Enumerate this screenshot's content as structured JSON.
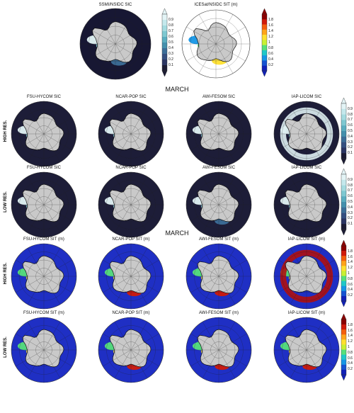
{
  "top_panels": [
    {
      "title": "SSMI/NSIDC SIC",
      "kind": "sic",
      "ocean": "#171733"
    },
    {
      "title": "ICESat/NSIDC SIT (m)",
      "kind": "sit_obs",
      "ocean": "#ffffff"
    }
  ],
  "sections": {
    "first": "MARCH",
    "second": "MARCH"
  },
  "row_labels": {
    "high": "HIGH RES.",
    "low": "LOW RES."
  },
  "rows": [
    {
      "kind": "sic",
      "label_key": "high",
      "titles": [
        "FSU-HYCOM SIC",
        "NCAR-POP SIC",
        "AWI-FESOM SIC",
        "IAP-LICOM SIC"
      ]
    },
    {
      "kind": "sic",
      "label_key": "low",
      "titles": [
        "FSU-HYCOM SIC",
        "NCAR-POP SIC",
        "AWI-FESOM SIC",
        "IAP-LICOM SIC"
      ]
    },
    {
      "kind": "sit",
      "label_key": "high",
      "titles": [
        "FSU-HYCOM SIT (m)",
        "NCAR-POP SIT (m)",
        "AWI-FESOM SIT (m)",
        "IAP-LICOM SIT (m)"
      ]
    },
    {
      "kind": "sit",
      "label_key": "low",
      "titles": [
        "FSU-HYCOM SIT (m)",
        "NCAR-POP  SIT (m)",
        "AWI-FESOM SIT (m)",
        "IAP-LICOM SIT (m)"
      ]
    }
  ],
  "colorbars": {
    "sic": {
      "ticks": [
        "0.9",
        "0.8",
        "0.7",
        "0.6",
        "0.5",
        "0.4",
        "0.3",
        "0.2",
        "0.1"
      ],
      "colors": [
        "#e3f4f6",
        "#c4e8ec",
        "#a4dbe0",
        "#7ec8d1",
        "#5aaec0",
        "#4490ad",
        "#3c6e98",
        "#344f80",
        "#2b3562",
        "#1b1b33"
      ]
    },
    "sit": {
      "ticks": [
        "1.8",
        "1.6",
        "1.4",
        "1.2",
        "1",
        "0.8",
        "0.6",
        "0.4",
        "0.2"
      ],
      "colors": [
        "#8b0000",
        "#d11a0a",
        "#f45e0c",
        "#ffa41a",
        "#ffe02e",
        "#c8f032",
        "#56e07a",
        "#1fc8c8",
        "#1596e6",
        "#1452d2",
        "#1020b8"
      ]
    }
  }
}
